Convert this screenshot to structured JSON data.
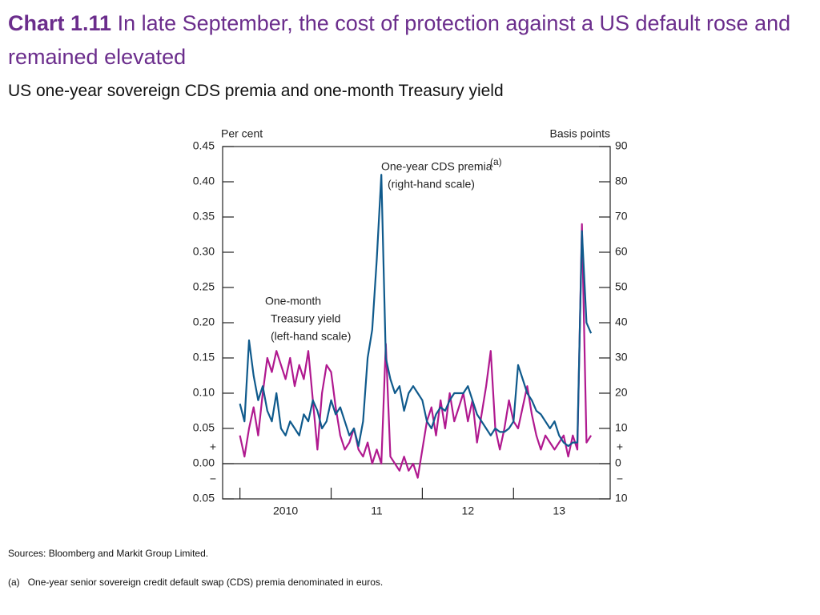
{
  "chart_data": {
    "type": "line",
    "title_label": "Chart 1.11",
    "title": "In late September, the cost of protection against a US default rose and remained elevated",
    "subtitle": "US one-year sovereign CDS premia and one-month Treasury yield",
    "y_axis_label": "Per cent",
    "y2_axis_label": "Basis points",
    "sign_plus": "+",
    "sign_minus": "−",
    "annotations": {
      "cds": [
        "One-year CDS premia",
        "(right-hand scale)"
      ],
      "cds_marker": "(a)",
      "treasury": [
        "One-month",
        "Treasury yield",
        "(left-hand scale)"
      ]
    },
    "source": "Sources: Bloomberg and Markit Group Limited.",
    "footnote_marker": "(a)",
    "footnote": "One-year senior sovereign credit default swap (CDS) premia denominated in euros.",
    "xlim": [
      2009.81,
      2014.06
    ],
    "xticks": [
      2010,
      2011,
      2012,
      2013
    ],
    "categories": [
      "2010",
      "11",
      "12",
      "13"
    ],
    "ylim": [
      -0.05,
      0.45
    ],
    "yticks": [
      {
        "value": 0.45,
        "label": "0.45"
      },
      {
        "value": 0.4,
        "label": "0.40"
      },
      {
        "value": 0.35,
        "label": "0.35"
      },
      {
        "value": 0.3,
        "label": "0.30"
      },
      {
        "value": 0.25,
        "label": "0.25"
      },
      {
        "value": 0.2,
        "label": "0.20"
      },
      {
        "value": 0.15,
        "label": "0.15"
      },
      {
        "value": 0.1,
        "label": "0.10"
      },
      {
        "value": 0.05,
        "label": "0.05"
      },
      {
        "value": 0,
        "label": "0.00"
      },
      {
        "value": -0.05,
        "label": "0.05"
      }
    ],
    "y2lim": [
      -10,
      90
    ],
    "y2ticks": [
      90,
      80,
      70,
      60,
      50,
      40,
      30,
      20,
      10,
      0,
      {
        "value": -10,
        "label": "10"
      }
    ],
    "x": [
      2010.0,
      2010.05,
      2010.1,
      2010.15,
      2010.2,
      2010.25,
      2010.3,
      2010.35,
      2010.4,
      2010.45,
      2010.5,
      2010.55,
      2010.6,
      2010.65,
      2010.7,
      2010.75,
      2010.8,
      2010.85,
      2010.9,
      2010.95,
      2011.0,
      2011.05,
      2011.1,
      2011.15,
      2011.2,
      2011.25,
      2011.3,
      2011.35,
      2011.4,
      2011.45,
      2011.5,
      2011.55,
      2011.6,
      2011.65,
      2011.7,
      2011.75,
      2011.8,
      2011.85,
      2011.9,
      2011.95,
      2012.0,
      2012.05,
      2012.1,
      2012.15,
      2012.2,
      2012.25,
      2012.3,
      2012.35,
      2012.4,
      2012.45,
      2012.5,
      2012.55,
      2012.6,
      2012.65,
      2012.7,
      2012.75,
      2012.8,
      2012.85,
      2012.9,
      2012.95,
      2013.0,
      2013.05,
      2013.1,
      2013.15,
      2013.2,
      2013.25,
      2013.3,
      2013.35,
      2013.4,
      2013.45,
      2013.5,
      2013.55,
      2013.6,
      2013.65,
      2013.7,
      2013.75,
      2013.8,
      2013.85
    ],
    "series": [
      {
        "name": "One-month Treasury yield",
        "color": "#b0198f",
        "axis": "y",
        "values": [
          0.04,
          0.01,
          0.05,
          0.08,
          0.04,
          0.1,
          0.15,
          0.13,
          0.16,
          0.14,
          0.12,
          0.15,
          0.11,
          0.14,
          0.12,
          0.16,
          0.09,
          0.02,
          0.1,
          0.14,
          0.13,
          0.08,
          0.04,
          0.02,
          0.03,
          0.05,
          0.02,
          0.01,
          0.03,
          0,
          0.02,
          0,
          0.17,
          0.01,
          0,
          -0.01,
          0.01,
          -0.01,
          0,
          -0.02,
          0.02,
          0.06,
          0.08,
          0.04,
          0.09,
          0.05,
          0.1,
          0.06,
          0.08,
          0.1,
          0.06,
          0.09,
          0.03,
          0.07,
          0.11,
          0.16,
          0.05,
          0.02,
          0.05,
          0.09,
          0.06,
          0.05,
          0.08,
          0.11,
          0.07,
          0.04,
          0.02,
          0.04,
          0.03,
          0.02,
          0.03,
          0.04,
          0.01,
          0.04,
          0.02,
          0.34,
          0.03,
          0.04
        ]
      },
      {
        "name": "One-year CDS premia",
        "color": "#0f5a8c",
        "axis": "y2",
        "values": [
          17,
          12,
          35,
          25,
          18,
          22,
          15,
          12,
          20,
          10,
          8,
          12,
          10,
          8,
          14,
          12,
          18,
          15,
          10,
          12,
          18,
          14,
          16,
          12,
          8,
          10,
          5,
          12,
          30,
          38,
          58,
          82,
          30,
          24,
          20,
          22,
          15,
          20,
          22,
          20,
          18,
          12,
          10,
          14,
          16,
          15,
          18,
          20,
          20,
          20,
          22,
          18,
          14,
          12,
          10,
          8,
          10,
          9,
          9,
          10,
          12,
          28,
          24,
          20,
          18,
          15,
          14,
          12,
          10,
          12,
          8,
          6,
          5,
          6,
          6,
          66,
          40,
          37
        ]
      }
    ]
  }
}
